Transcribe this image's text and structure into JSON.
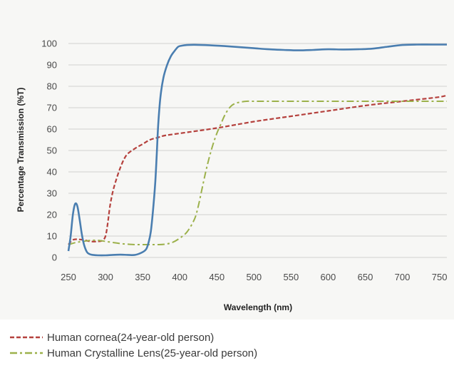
{
  "chart_data": {
    "type": "line",
    "title": "",
    "xlabel": "Wavelength (nm)",
    "ylabel": "Percentage Transmission (%T)",
    "xlim": [
      250,
      760
    ],
    "ylim": [
      0,
      100
    ],
    "x_ticks": [
      250,
      300,
      350,
      400,
      450,
      500,
      550,
      600,
      650,
      700,
      750
    ],
    "y_ticks": [
      0,
      10,
      20,
      30,
      40,
      50,
      60,
      70,
      80,
      90,
      100
    ],
    "grid": "horizontal",
    "legend_position": "bottom-left",
    "series": [
      {
        "name": "",
        "color": "#4a7eb0",
        "style": "solid",
        "x": [
          250,
          253,
          256,
          259,
          262,
          265,
          268,
          271,
          275,
          279,
          283,
          290,
          300,
          310,
          320,
          330,
          340,
          350,
          355,
          358,
          361,
          364,
          367,
          369,
          371,
          374,
          378,
          383,
          388,
          393,
          398,
          403,
          410,
          420,
          440,
          460,
          480,
          500,
          520,
          540,
          560,
          580,
          600,
          620,
          640,
          660,
          680,
          700,
          720,
          740,
          760
        ],
        "y": [
          3,
          10,
          20,
          25,
          24,
          18,
          11,
          6,
          2.5,
          1.5,
          1.2,
          1,
          1,
          1.2,
          1.3,
          1.2,
          1.2,
          2.5,
          4,
          7,
          12,
          22,
          35,
          48,
          62,
          75,
          84,
          90,
          94,
          96.5,
          98.5,
          99,
          99.3,
          99.4,
          99.2,
          98.8,
          98.3,
          97.8,
          97.3,
          97,
          96.8,
          97,
          97.3,
          97.2,
          97.3,
          97.6,
          98.5,
          99.3,
          99.5,
          99.5,
          99.5
        ]
      },
      {
        "name": "Human cornea(24-year-old person)",
        "color": "#b5413d",
        "style": "dashed",
        "x": [
          250,
          255,
          260,
          270,
          280,
          290,
          296,
          300,
          303,
          306,
          310,
          315,
          320,
          325,
          330,
          340,
          350,
          360,
          370,
          380,
          400,
          450,
          500,
          550,
          600,
          650,
          700,
          750,
          760
        ],
        "y": [
          6,
          8,
          8.5,
          8.2,
          7.5,
          7.5,
          8,
          10,
          16,
          24,
          31,
          37,
          42,
          46,
          48.5,
          51,
          53,
          55,
          56,
          57,
          58,
          60.5,
          63.5,
          66,
          68.5,
          71,
          73,
          75,
          76
        ]
      },
      {
        "name": "Human  Crystalline Lens(25-year-old person)",
        "color": "#9cb14b",
        "style": "dashdot",
        "x": [
          250,
          260,
          270,
          280,
          290,
          300,
          310,
          320,
          330,
          340,
          350,
          360,
          370,
          380,
          390,
          400,
          410,
          420,
          425,
          430,
          435,
          440,
          445,
          450,
          455,
          460,
          465,
          470,
          475,
          480,
          490,
          500,
          550,
          600,
          650,
          700,
          760
        ],
        "y": [
          6,
          7,
          7.5,
          8,
          8,
          7.5,
          7,
          6.5,
          6.2,
          6,
          6,
          6,
          6,
          6.2,
          7,
          9,
          12,
          18,
          24,
          32,
          40,
          47,
          53,
          58,
          62,
          66,
          69,
          71,
          72,
          72.5,
          73,
          73,
          73,
          73,
          73,
          73,
          73
        ]
      }
    ]
  }
}
